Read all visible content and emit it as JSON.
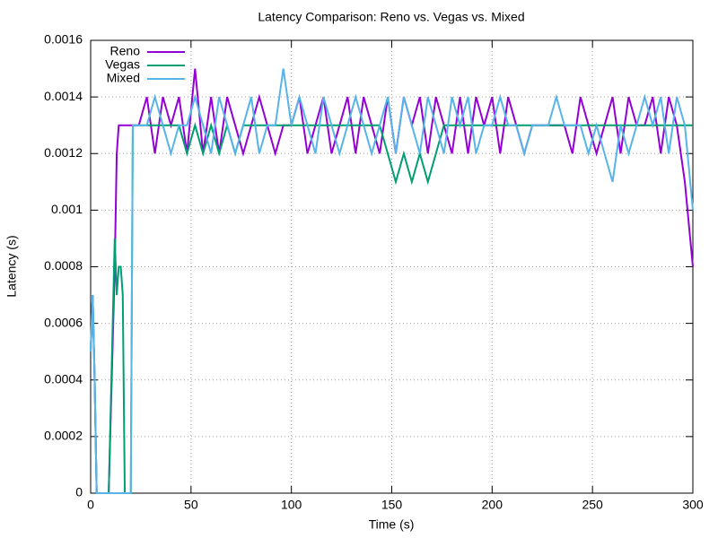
{
  "chart_data": {
    "type": "line",
    "title": "Latency Comparison: Reno vs. Vegas vs. Mixed",
    "x_label": "Time (s)",
    "y_label": "Latency (s)",
    "x": [
      0,
      1,
      2,
      3,
      6,
      9,
      12,
      13,
      14,
      15,
      16,
      17,
      18,
      19,
      20,
      21,
      22,
      24,
      28,
      32,
      36,
      40,
      44,
      48,
      52,
      56,
      60,
      64,
      68,
      72,
      76,
      80,
      84,
      88,
      92,
      96,
      100,
      104,
      108,
      112,
      116,
      120,
      124,
      128,
      132,
      136,
      140,
      144,
      148,
      152,
      156,
      160,
      164,
      168,
      172,
      176,
      180,
      184,
      188,
      192,
      196,
      200,
      204,
      208,
      212,
      216,
      220,
      224,
      228,
      232,
      236,
      240,
      244,
      248,
      252,
      256,
      260,
      264,
      268,
      272,
      276,
      280,
      284,
      288,
      292,
      296,
      300
    ],
    "series": [
      {
        "name": "Reno",
        "color": "#9400d3",
        "values": [
          0.0005,
          0.0007,
          0.0004,
          0,
          0,
          0,
          0.0008,
          0.0012,
          0.0013,
          0.0013,
          0.0013,
          0.0013,
          0.0013,
          0.0013,
          0.0013,
          0.0013,
          0.0013,
          0.0013,
          0.0014,
          0.0012,
          0.0014,
          0.0013,
          0.0014,
          0.0012,
          0.0015,
          0.0012,
          0.0014,
          0.0012,
          0.0014,
          0.0013,
          0.0012,
          0.0013,
          0.0014,
          0.0013,
          0.0012,
          0.0013,
          0.0013,
          0.0014,
          0.0012,
          0.0013,
          0.0014,
          0.0012,
          0.0013,
          0.0014,
          0.0012,
          0.0014,
          0.0013,
          0.0012,
          0.0014,
          0.0012,
          0.0014,
          0.0013,
          0.0014,
          0.0012,
          0.0014,
          0.0013,
          0.0012,
          0.0014,
          0.0012,
          0.0014,
          0.0013,
          0.0014,
          0.0012,
          0.0014,
          0.0013,
          0.0012,
          0.0013,
          0.0013,
          0.0013,
          0.0013,
          0.0013,
          0.0012,
          0.0014,
          0.0013,
          0.0012,
          0.0013,
          0.0014,
          0.0012,
          0.0014,
          0.0013,
          0.0013,
          0.0014,
          0.0012,
          0.0014,
          0.0013,
          0.0011,
          0.0008
        ]
      },
      {
        "name": "Vegas",
        "color": "#009e73",
        "values": [
          0.0005,
          0.0007,
          0.0004,
          0,
          0,
          0,
          0.0009,
          0.0007,
          0.0008,
          0.0008,
          0.0007,
          0,
          0,
          0,
          0,
          0.0013,
          0.0013,
          0.0013,
          0.0013,
          0.0013,
          0.0013,
          0.0013,
          0.0013,
          0.0012,
          0.0013,
          0.0012,
          0.0013,
          0.0012,
          0.0013,
          0.0012,
          0.0013,
          0.0013,
          0.0013,
          0.0013,
          0.0013,
          0.0013,
          0.0013,
          0.0013,
          0.0013,
          0.0013,
          0.0013,
          0.0013,
          0.0013,
          0.0013,
          0.0013,
          0.0013,
          0.0013,
          0.0013,
          0.0012,
          0.0011,
          0.0012,
          0.0011,
          0.0012,
          0.0011,
          0.0012,
          0.0013,
          0.0013,
          0.0013,
          0.0013,
          0.0013,
          0.0013,
          0.0013,
          0.0013,
          0.0013,
          0.0013,
          0.0013,
          0.0013,
          0.0013,
          0.0013,
          0.0013,
          0.0013,
          0.0013,
          0.0013,
          0.0013,
          0.0013,
          0.0013,
          0.0013,
          0.0013,
          0.0013,
          0.0013,
          0.0013,
          0.0013,
          0.0013,
          0.0013,
          0.0013,
          0.0013,
          0.0013
        ]
      },
      {
        "name": "Mixed",
        "color": "#56b4e9",
        "values": [
          0.0005,
          0.0007,
          0.0004,
          0,
          0,
          0,
          0,
          0,
          0,
          0,
          0,
          0,
          0,
          0,
          0,
          0.0013,
          0.0013,
          0.0013,
          0.0013,
          0.0014,
          0.0013,
          0.0012,
          0.0013,
          0.0013,
          0.0014,
          0.0013,
          0.0012,
          0.0014,
          0.0013,
          0.0012,
          0.0013,
          0.0014,
          0.0012,
          0.0013,
          0.0013,
          0.0015,
          0.0013,
          0.0014,
          0.0013,
          0.0012,
          0.0014,
          0.0013,
          0.0012,
          0.0013,
          0.0014,
          0.0013,
          0.0012,
          0.0013,
          0.0014,
          0.0012,
          0.0014,
          0.0013,
          0.0012,
          0.0014,
          0.0013,
          0.0012,
          0.0014,
          0.0013,
          0.0014,
          0.0012,
          0.0013,
          0.0013,
          0.0014,
          0.0013,
          0.0013,
          0.0012,
          0.0013,
          0.0013,
          0.0013,
          0.0014,
          0.0013,
          0.0013,
          0.0013,
          0.0012,
          0.0013,
          0.0012,
          0.0011,
          0.0013,
          0.0012,
          0.0013,
          0.0014,
          0.0013,
          0.0014,
          0.0012,
          0.0014,
          0.0013,
          0.001
        ]
      }
    ],
    "xlim": [
      0,
      300
    ],
    "ylim": [
      0,
      0.0016
    ],
    "xticks": [
      0,
      50,
      100,
      150,
      200,
      250,
      300
    ],
    "yticks": [
      0,
      0.0002,
      0.0004,
      0.0006,
      0.0008,
      0.001,
      0.0012,
      0.0014,
      0.0016
    ],
    "grid": true,
    "legend": "top-left"
  }
}
